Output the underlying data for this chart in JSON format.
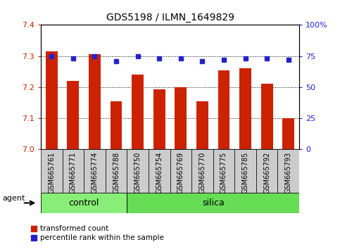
{
  "title": "GDS5198 / ILMN_1649829",
  "samples": [
    "GSM665761",
    "GSM665771",
    "GSM665774",
    "GSM665788",
    "GSM665750",
    "GSM665754",
    "GSM665769",
    "GSM665770",
    "GSM665775",
    "GSM665785",
    "GSM665792",
    "GSM665793"
  ],
  "red_values": [
    7.315,
    7.22,
    7.305,
    7.155,
    7.24,
    7.192,
    7.2,
    7.155,
    7.255,
    7.26,
    7.21,
    7.1
  ],
  "blue_values": [
    75,
    73,
    75,
    71,
    75,
    73,
    73,
    71,
    72,
    73,
    73,
    72
  ],
  "control_count": 4,
  "silica_count": 8,
  "ylim_left": [
    7.0,
    7.4
  ],
  "ylim_right": [
    0,
    100
  ],
  "yticks_left": [
    7.0,
    7.1,
    7.2,
    7.3,
    7.4
  ],
  "yticks_right": [
    0,
    25,
    50,
    75,
    100
  ],
  "bar_color": "#cc2200",
  "dot_color": "#2222cc",
  "control_color": "#88ee77",
  "silica_color": "#66dd55",
  "bg_color": "#cccccc",
  "legend_red_label": "transformed count",
  "legend_blue_label": "percentile rank within the sample",
  "agent_label": "agent"
}
